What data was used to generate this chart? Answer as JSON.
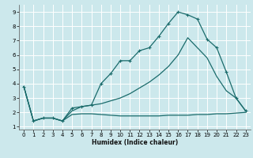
{
  "xlabel": "Humidex (Indice chaleur)",
  "bg_color": "#cce8ec",
  "grid_color": "#ffffff",
  "line_color": "#1a6b6b",
  "xlim": [
    -0.5,
    23.5
  ],
  "ylim": [
    0.8,
    9.5
  ],
  "xticks": [
    0,
    1,
    2,
    3,
    4,
    5,
    6,
    7,
    8,
    9,
    10,
    11,
    12,
    13,
    14,
    15,
    16,
    17,
    18,
    19,
    20,
    21,
    22,
    23
  ],
  "yticks": [
    1,
    2,
    3,
    4,
    5,
    6,
    7,
    8,
    9
  ],
  "curve1_x": [
    0,
    1,
    2,
    3,
    4,
    5,
    6,
    7,
    8,
    9,
    10,
    11,
    12,
    13,
    14,
    15,
    16,
    17,
    18,
    19,
    20,
    21,
    22,
    23
  ],
  "curve1_y": [
    3.8,
    1.4,
    1.6,
    1.6,
    1.4,
    1.85,
    1.9,
    1.9,
    1.85,
    1.8,
    1.75,
    1.75,
    1.75,
    1.75,
    1.75,
    1.8,
    1.8,
    1.8,
    1.85,
    1.85,
    1.9,
    1.9,
    1.95,
    2.0
  ],
  "curve2_x": [
    0,
    1,
    2,
    3,
    4,
    5,
    6,
    7,
    8,
    9,
    10,
    11,
    12,
    13,
    14,
    15,
    16,
    17,
    18,
    19,
    20,
    21,
    22,
    23
  ],
  "curve2_y": [
    3.8,
    1.4,
    1.6,
    1.6,
    1.4,
    2.3,
    2.4,
    2.5,
    4.0,
    4.7,
    5.6,
    5.6,
    6.3,
    6.5,
    7.3,
    8.2,
    9.0,
    8.8,
    8.5,
    7.1,
    6.5,
    4.8,
    3.0,
    2.1
  ],
  "curve3_x": [
    0,
    1,
    2,
    3,
    4,
    5,
    6,
    7,
    8,
    9,
    10,
    11,
    12,
    13,
    14,
    15,
    16,
    17,
    18,
    19,
    20,
    21,
    22,
    23
  ],
  "curve3_y": [
    3.8,
    1.4,
    1.6,
    1.6,
    1.4,
    2.1,
    2.4,
    2.5,
    2.6,
    2.8,
    3.0,
    3.3,
    3.7,
    4.1,
    4.6,
    5.2,
    6.0,
    7.2,
    6.5,
    5.8,
    4.5,
    3.5,
    3.0,
    2.1
  ]
}
